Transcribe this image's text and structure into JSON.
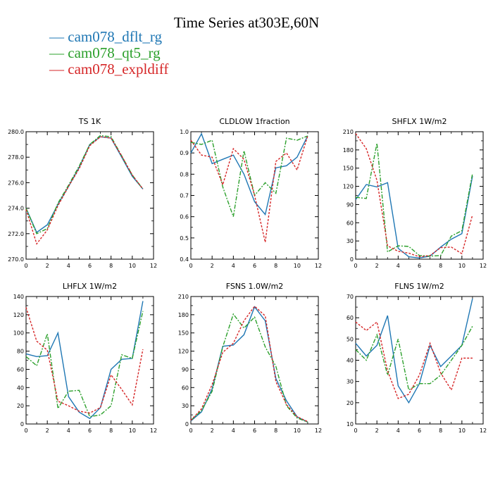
{
  "title": "Time Series at303E,60N",
  "legend": [
    {
      "label": "— cam078_dflt_rg",
      "color": "#1f77b4"
    },
    {
      "label": "— cam078_qt5_rg",
      "color": "#2ca02c"
    },
    {
      "label": "— cam078_expldiff",
      "color": "#d62728"
    }
  ],
  "chart_data": [
    {
      "type": "line",
      "title": "TS 1K",
      "x": [
        0,
        1,
        2,
        3,
        4,
        5,
        6,
        7,
        8,
        9,
        10,
        11
      ],
      "xlim": [
        0,
        12
      ],
      "xticks": [
        "0",
        "2",
        "4",
        "6",
        "8",
        "10",
        "12"
      ],
      "ylim": [
        270,
        280
      ],
      "yticks": [
        "270.0",
        "272.0",
        "274.0",
        "276.0",
        "278.0",
        "280.0"
      ],
      "series": [
        {
          "name": "cam078_dflt_rg",
          "color": "#1f77b4",
          "dash": "",
          "values": [
            274.0,
            272.1,
            272.7,
            274.3,
            275.7,
            277.2,
            279.0,
            279.6,
            279.5,
            278.0,
            276.5,
            275.5
          ]
        },
        {
          "name": "cam078_qt5_rg",
          "color": "#2ca02c",
          "dash": "6,2,2,2",
          "values": [
            274.0,
            272.0,
            272.4,
            274.4,
            275.8,
            277.3,
            279.0,
            279.7,
            279.6,
            278.1,
            276.6,
            275.5
          ]
        },
        {
          "name": "cam078_expldiff",
          "color": "#d62728",
          "dash": "3,2",
          "values": [
            273.9,
            271.2,
            272.3,
            274.2,
            275.7,
            277.1,
            278.9,
            279.6,
            279.5,
            278.1,
            276.6,
            275.5
          ]
        }
      ]
    },
    {
      "type": "line",
      "title": "CLDLOW 1fraction",
      "x": [
        0,
        1,
        2,
        3,
        4,
        5,
        6,
        7,
        8,
        9,
        10,
        11
      ],
      "xlim": [
        0,
        12
      ],
      "xticks": [
        "0",
        "2",
        "4",
        "6",
        "8",
        "10",
        "12"
      ],
      "ylim": [
        0.4,
        1.0
      ],
      "yticks": [
        "0.4",
        "0.5",
        "0.6",
        "0.7",
        "0.8",
        "0.9",
        "1.0"
      ],
      "series": [
        {
          "name": "cam078_dflt_rg",
          "color": "#1f77b4",
          "dash": "",
          "values": [
            0.9,
            0.99,
            0.85,
            0.87,
            0.89,
            0.8,
            0.67,
            0.61,
            0.83,
            0.84,
            0.88,
            0.98
          ]
        },
        {
          "name": "cam078_qt5_rg",
          "color": "#2ca02c",
          "dash": "6,2,2,2",
          "values": [
            0.95,
            0.94,
            0.96,
            0.74,
            0.6,
            0.91,
            0.7,
            0.76,
            0.71,
            0.97,
            0.96,
            0.98
          ]
        },
        {
          "name": "cam078_expldiff",
          "color": "#d62728",
          "dash": "3,2",
          "values": [
            0.96,
            0.89,
            0.88,
            0.75,
            0.92,
            0.87,
            0.7,
            0.48,
            0.86,
            0.9,
            0.82,
            0.98
          ]
        }
      ]
    },
    {
      "type": "line",
      "title": "SHFLX 1W/m2",
      "x": [
        0,
        1,
        2,
        3,
        4,
        5,
        6,
        7,
        8,
        9,
        10,
        11
      ],
      "xlim": [
        0,
        12
      ],
      "xticks": [
        "0",
        "2",
        "4",
        "6",
        "8",
        "10",
        "12"
      ],
      "ylim": [
        0,
        210
      ],
      "yticks": [
        "0",
        "30",
        "60",
        "90",
        "120",
        "150",
        "180",
        "210"
      ],
      "series": [
        {
          "name": "cam078_dflt_rg",
          "color": "#1f77b4",
          "dash": "",
          "values": [
            98,
            123,
            119,
            126,
            18,
            4,
            2,
            5,
            20,
            33,
            42,
            137
          ]
        },
        {
          "name": "cam078_qt5_rg",
          "color": "#2ca02c",
          "dash": "6,2,2,2",
          "values": [
            102,
            100,
            191,
            12,
            22,
            21,
            6,
            5,
            6,
            38,
            47,
            141
          ]
        },
        {
          "name": "cam078_expldiff",
          "color": "#d62728",
          "dash": "3,2",
          "values": [
            207,
            182,
            130,
            22,
            13,
            10,
            4,
            6,
            19,
            20,
            9,
            73
          ]
        }
      ]
    },
    {
      "type": "line",
      "title": "LHFLX 1W/m2",
      "x": [
        0,
        1,
        2,
        3,
        4,
        5,
        6,
        7,
        8,
        9,
        10,
        11
      ],
      "xlim": [
        0,
        12
      ],
      "xticks": [
        "0",
        "2",
        "4",
        "6",
        "8",
        "10",
        "12"
      ],
      "ylim": [
        0,
        140
      ],
      "yticks": [
        "0",
        "20",
        "40",
        "60",
        "80",
        "100",
        "120",
        "140"
      ],
      "series": [
        {
          "name": "cam078_dflt_rg",
          "color": "#1f77b4",
          "dash": "",
          "values": [
            77,
            74,
            75,
            100,
            30,
            13,
            6,
            18,
            60,
            71,
            72,
            135
          ]
        },
        {
          "name": "cam078_qt5_rg",
          "color": "#2ca02c",
          "dash": "6,2,2,2",
          "values": [
            74,
            64,
            99,
            17,
            36,
            37,
            8,
            10,
            20,
            76,
            72,
            124
          ]
        },
        {
          "name": "cam078_expldiff",
          "color": "#d62728",
          "dash": "3,2",
          "values": [
            128,
            91,
            81,
            25,
            20,
            14,
            12,
            18,
            54,
            38,
            21,
            82
          ]
        }
      ]
    },
    {
      "type": "line",
      "title": "FSNS 1.0W/m2",
      "x": [
        0,
        1,
        2,
        3,
        4,
        5,
        6,
        7,
        8,
        9,
        10,
        11
      ],
      "xlim": [
        0,
        12
      ],
      "xticks": [
        "0",
        "2",
        "4",
        "6",
        "8",
        "10",
        "12"
      ],
      "ylim": [
        0,
        210
      ],
      "yticks": [
        "0",
        "30",
        "60",
        "90",
        "120",
        "150",
        "180",
        "210"
      ],
      "series": [
        {
          "name": "cam078_dflt_rg",
          "color": "#1f77b4",
          "dash": "",
          "values": [
            5,
            20,
            58,
            128,
            130,
            147,
            193,
            170,
            75,
            38,
            12,
            3
          ]
        },
        {
          "name": "cam078_qt5_rg",
          "color": "#2ca02c",
          "dash": "6,2,2,2",
          "values": [
            6,
            22,
            54,
            127,
            181,
            158,
            176,
            127,
            95,
            30,
            10,
            3
          ]
        },
        {
          "name": "cam078_expldiff",
          "color": "#d62728",
          "dash": "3,2",
          "values": [
            6,
            25,
            65,
            118,
            133,
            170,
            194,
            178,
            70,
            32,
            12,
            4
          ]
        }
      ]
    },
    {
      "type": "line",
      "title": "FLNS 1W/m2",
      "x": [
        0,
        1,
        2,
        3,
        4,
        5,
        6,
        7,
        8,
        9,
        10,
        11
      ],
      "xlim": [
        0,
        12
      ],
      "xticks": [
        "0",
        "2",
        "4",
        "6",
        "8",
        "10",
        "12"
      ],
      "ylim": [
        10,
        70
      ],
      "yticks": [
        "10",
        "20",
        "30",
        "40",
        "50",
        "60",
        "70"
      ],
      "series": [
        {
          "name": "cam078_dflt_rg",
          "color": "#1f77b4",
          "dash": "",
          "values": [
            48,
            42,
            47,
            61,
            28,
            20,
            29,
            47,
            37,
            42,
            47,
            69
          ]
        },
        {
          "name": "cam078_qt5_rg",
          "color": "#2ca02c",
          "dash": "6,2,2,2",
          "values": [
            45,
            40,
            52,
            33,
            50,
            26,
            29,
            29,
            33,
            40,
            47,
            56
          ]
        },
        {
          "name": "cam078_expldiff",
          "color": "#d62728",
          "dash": "3,2",
          "values": [
            58,
            54,
            58,
            35,
            22,
            24,
            33,
            48,
            34,
            26,
            41,
            41
          ]
        }
      ]
    }
  ]
}
